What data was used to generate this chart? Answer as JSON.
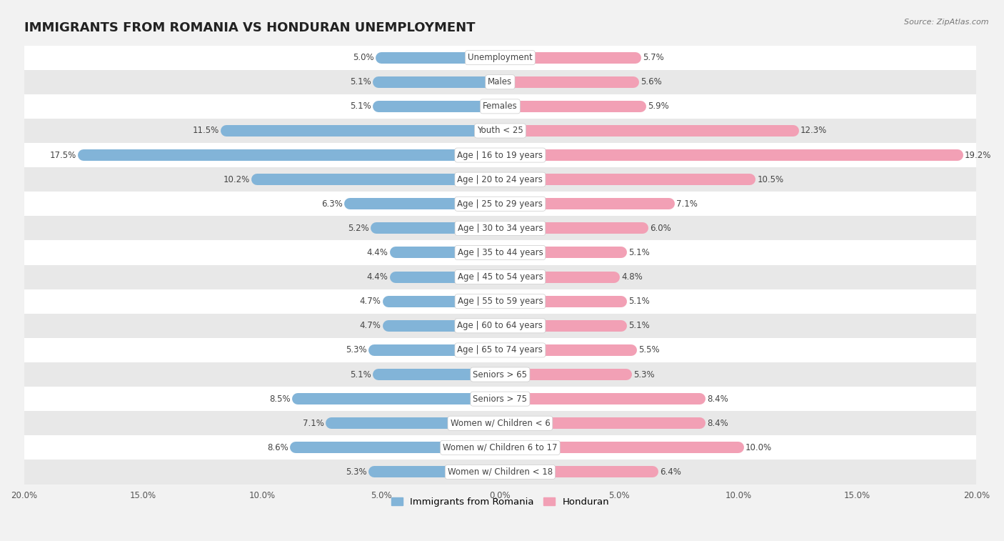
{
  "title": "IMMIGRANTS FROM ROMANIA VS HONDURAN UNEMPLOYMENT",
  "source": "Source: ZipAtlas.com",
  "categories": [
    "Unemployment",
    "Males",
    "Females",
    "Youth < 25",
    "Age | 16 to 19 years",
    "Age | 20 to 24 years",
    "Age | 25 to 29 years",
    "Age | 30 to 34 years",
    "Age | 35 to 44 years",
    "Age | 45 to 54 years",
    "Age | 55 to 59 years",
    "Age | 60 to 64 years",
    "Age | 65 to 74 years",
    "Seniors > 65",
    "Seniors > 75",
    "Women w/ Children < 6",
    "Women w/ Children 6 to 17",
    "Women w/ Children < 18"
  ],
  "romania_values": [
    5.0,
    5.1,
    5.1,
    11.5,
    17.5,
    10.2,
    6.3,
    5.2,
    4.4,
    4.4,
    4.7,
    4.7,
    5.3,
    5.1,
    8.5,
    7.1,
    8.6,
    5.3
  ],
  "honduran_values": [
    5.7,
    5.6,
    5.9,
    12.3,
    19.2,
    10.5,
    7.1,
    6.0,
    5.1,
    4.8,
    5.1,
    5.1,
    5.5,
    5.3,
    8.4,
    8.4,
    10.0,
    6.4
  ],
  "romania_color": "#82b4d8",
  "honduran_color": "#f2a0b5",
  "background_color": "#f2f2f2",
  "row_color_odd": "#ffffff",
  "row_color_even": "#e8e8e8",
  "xlim": 20.0,
  "bar_height": 0.38,
  "title_fontsize": 13,
  "value_fontsize": 8.5,
  "cat_fontsize": 8.5,
  "tick_fontsize": 8.5,
  "legend_fontsize": 9.5
}
